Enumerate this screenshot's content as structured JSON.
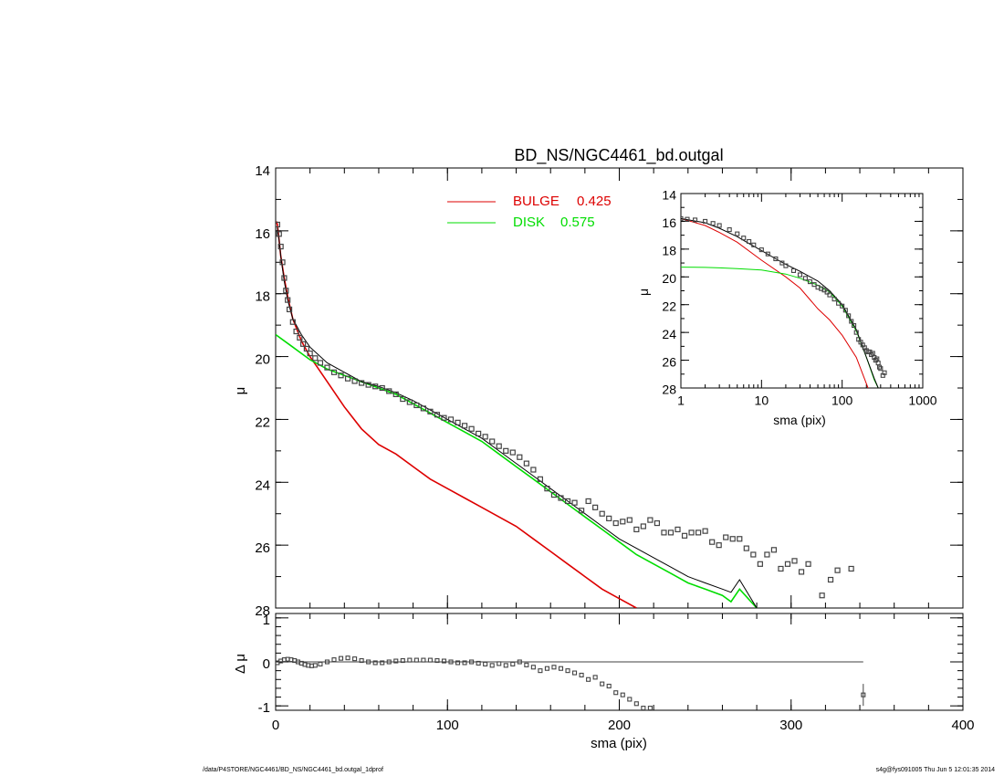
{
  "colors": {
    "axes": "#000000",
    "bulge": "#dd0000",
    "disk": "#00dd00",
    "total": "#000000",
    "points": "#444444"
  },
  "footer": {
    "left": "/data/P4STORE/NGC4461/BD_NS/NGC4461_bd.outgal_1dprof",
    "right": "s4g@fys091005  Thu Jun  5 12:01:35 2014"
  },
  "chart_data": [
    {
      "id": "main",
      "type": "scatter",
      "title": "BD_NS/NGC4461_bd.outgal",
      "xlabel": "",
      "ylabel": "μ",
      "xlim": [
        0,
        400
      ],
      "ylim": [
        28,
        14
      ],
      "yticks": [
        "14",
        "16",
        "18",
        "20",
        "22",
        "24",
        "26",
        "28"
      ],
      "legend": [
        {
          "name": "BULGE",
          "value": "0.425",
          "color": "#dd0000"
        },
        {
          "name": "DISK",
          "value": "0.575",
          "color": "#00dd00"
        }
      ],
      "legend_position": "top-center",
      "series": [
        {
          "name": "BULGE",
          "style": "line",
          "color": "#dd0000",
          "x": [
            0.5,
            1,
            2,
            3,
            5,
            7,
            10,
            15,
            20,
            25,
            30,
            40,
            50,
            60,
            70,
            80,
            90,
            100,
            110,
            120,
            130,
            140,
            150,
            160,
            170,
            180,
            190,
            200,
            210
          ],
          "y": [
            15.7,
            15.8,
            16.3,
            16.8,
            17.5,
            18.1,
            18.8,
            19.5,
            20.0,
            20.4,
            20.8,
            21.6,
            22.3,
            22.8,
            23.1,
            23.5,
            23.9,
            24.2,
            24.5,
            24.8,
            25.1,
            25.4,
            25.8,
            26.2,
            26.6,
            27.0,
            27.4,
            27.7,
            28.0
          ]
        },
        {
          "name": "DISK",
          "style": "line",
          "color": "#00dd00",
          "x": [
            0,
            10,
            20,
            30,
            40,
            50,
            60,
            70,
            80,
            90,
            100,
            110,
            120,
            130,
            140,
            150,
            160,
            170,
            180,
            190,
            200,
            210,
            220,
            230,
            240,
            250,
            260,
            265,
            270,
            280
          ],
          "y": [
            19.3,
            19.7,
            20.1,
            20.4,
            20.6,
            20.8,
            21.0,
            21.2,
            21.5,
            21.8,
            22.1,
            22.4,
            22.7,
            23.1,
            23.5,
            23.9,
            24.3,
            24.7,
            25.1,
            25.5,
            25.9,
            26.3,
            26.6,
            26.9,
            27.2,
            27.4,
            27.6,
            27.8,
            27.4,
            28.0
          ]
        },
        {
          "name": "Total",
          "style": "line",
          "color": "#000000",
          "x": [
            1,
            2,
            3,
            5,
            7,
            10,
            15,
            20,
            30,
            40,
            50,
            60,
            70,
            80,
            90,
            100,
            110,
            120,
            130,
            140,
            150,
            160,
            170,
            180,
            190,
            200,
            210,
            220,
            230,
            240,
            250,
            260,
            265,
            270,
            280
          ],
          "y": [
            15.9,
            16.3,
            16.8,
            17.6,
            18.2,
            18.8,
            19.3,
            19.7,
            20.2,
            20.5,
            20.8,
            20.95,
            21.15,
            21.4,
            21.7,
            22.0,
            22.3,
            22.6,
            23.0,
            23.4,
            23.8,
            24.2,
            24.6,
            25.0,
            25.4,
            25.8,
            26.1,
            26.4,
            26.7,
            27.0,
            27.2,
            27.4,
            27.5,
            27.1,
            28.0
          ]
        },
        {
          "name": "Data",
          "style": "points",
          "color": "#444444",
          "x": [
            1,
            2,
            3,
            4,
            5,
            6,
            7,
            8,
            10,
            12,
            14,
            16,
            18,
            20,
            23,
            26,
            30,
            34,
            38,
            42,
            46,
            50,
            54,
            58,
            62,
            66,
            70,
            74,
            78,
            82,
            86,
            90,
            94,
            98,
            102,
            106,
            110,
            114,
            118,
            122,
            126,
            130,
            134,
            138,
            142,
            146,
            150,
            154,
            158,
            162,
            166,
            170,
            174,
            178,
            182,
            186,
            190,
            194,
            198,
            202,
            206,
            210,
            214,
            218,
            222,
            226,
            230,
            234,
            238,
            242,
            246,
            250,
            254,
            258,
            262,
            266,
            270,
            274,
            278,
            282,
            286,
            290,
            294,
            298,
            302,
            306,
            310,
            318,
            323,
            327,
            335
          ],
          "y": [
            15.8,
            16.1,
            16.5,
            17.0,
            17.5,
            17.9,
            18.2,
            18.5,
            18.9,
            19.2,
            19.4,
            19.6,
            19.75,
            19.9,
            20.05,
            20.2,
            20.35,
            20.5,
            20.6,
            20.7,
            20.78,
            20.84,
            20.9,
            20.95,
            21.0,
            21.1,
            21.2,
            21.35,
            21.45,
            21.55,
            21.65,
            21.75,
            21.85,
            21.95,
            22.0,
            22.1,
            22.2,
            22.3,
            22.45,
            22.55,
            22.7,
            22.85,
            23.0,
            23.05,
            23.2,
            23.4,
            23.6,
            23.9,
            24.2,
            24.4,
            24.5,
            24.6,
            24.65,
            24.9,
            24.6,
            24.8,
            25.0,
            25.15,
            25.3,
            25.25,
            25.2,
            25.5,
            25.4,
            25.2,
            25.3,
            25.6,
            25.6,
            25.5,
            25.7,
            25.6,
            25.6,
            25.55,
            25.9,
            26.0,
            25.75,
            25.8,
            25.8,
            26.1,
            26.3,
            26.6,
            26.3,
            26.15,
            26.75,
            26.6,
            26.5,
            26.85,
            26.6,
            27.6,
            27.1,
            26.8,
            26.75
          ]
        }
      ]
    },
    {
      "id": "inset",
      "type": "scatter",
      "title": "",
      "xlabel": "sma (pix)",
      "ylabel": "μ",
      "xscale": "log",
      "xlim": [
        1,
        1000
      ],
      "ylim": [
        28,
        14
      ],
      "xticks": [
        "1",
        "10",
        "100",
        "1000"
      ],
      "yticks": [
        "14",
        "16",
        "18",
        "20",
        "22",
        "24",
        "26",
        "28"
      ],
      "series": [
        {
          "name": "BULGE",
          "style": "line",
          "color": "#dd0000",
          "x": [
            1,
            2,
            3,
            5,
            10,
            20,
            30,
            50,
            70,
            100,
            150,
            200,
            210
          ],
          "y": [
            15.8,
            16.3,
            16.8,
            17.5,
            18.8,
            20.0,
            20.8,
            22.3,
            23.1,
            24.2,
            25.8,
            27.7,
            28.0
          ]
        },
        {
          "name": "DISK",
          "style": "line",
          "color": "#00dd00",
          "x": [
            1,
            2,
            3,
            5,
            10,
            20,
            30,
            50,
            70,
            100,
            150,
            200,
            250,
            280
          ],
          "y": [
            19.3,
            19.32,
            19.35,
            19.4,
            19.5,
            19.8,
            20.1,
            20.6,
            21.1,
            22.1,
            23.9,
            25.8,
            27.4,
            28.0
          ]
        },
        {
          "name": "Total",
          "style": "line",
          "color": "#000000",
          "x": [
            1,
            2,
            3,
            5,
            7,
            10,
            15,
            20,
            30,
            50,
            70,
            100,
            150,
            200,
            250,
            280
          ],
          "y": [
            15.8,
            16.1,
            16.5,
            17.1,
            17.6,
            18.1,
            18.7,
            19.1,
            19.6,
            20.3,
            21.0,
            22.0,
            23.8,
            25.8,
            27.3,
            28.0
          ]
        },
        {
          "name": "Data",
          "style": "points",
          "color": "#444444",
          "x": [
            1,
            1.2,
            1.5,
            2,
            2.5,
            3,
            4,
            5,
            6,
            7,
            8,
            10,
            12,
            15,
            18,
            20,
            25,
            30,
            35,
            40,
            45,
            50,
            55,
            60,
            65,
            70,
            80,
            90,
            100,
            110,
            120,
            130,
            140,
            150,
            160,
            170,
            180,
            190,
            200,
            210,
            220,
            230,
            240,
            250,
            260,
            270,
            280,
            290,
            300,
            320,
            335
          ],
          "y": [
            15.8,
            15.85,
            15.9,
            16.0,
            16.15,
            16.3,
            16.6,
            16.9,
            17.2,
            17.45,
            17.7,
            18.05,
            18.35,
            18.7,
            19.0,
            19.2,
            19.55,
            19.85,
            20.1,
            20.35,
            20.55,
            20.75,
            20.85,
            20.95,
            21.1,
            21.3,
            21.6,
            21.9,
            22.1,
            22.4,
            22.8,
            23.2,
            23.5,
            24.0,
            24.5,
            24.7,
            24.9,
            25.1,
            25.3,
            25.4,
            25.4,
            25.6,
            25.5,
            25.8,
            26.0,
            25.9,
            26.2,
            26.5,
            26.6,
            27.1,
            26.9
          ]
        }
      ]
    },
    {
      "id": "residual",
      "type": "scatter",
      "title": "",
      "xlabel": "sma (pix)",
      "ylabel": "Δ μ",
      "xlim": [
        0,
        400
      ],
      "ylim": [
        -1.1,
        1.1
      ],
      "xticks": [
        "0",
        "100",
        "200",
        "300",
        "400"
      ],
      "yticks": [
        "1",
        "0",
        "-1"
      ],
      "series": [
        {
          "name": "zero",
          "style": "line",
          "color": "#000000",
          "x": [
            0,
            342
          ],
          "y": [
            0,
            0
          ]
        },
        {
          "name": "Residual",
          "style": "points",
          "color": "#444444",
          "x": [
            1,
            3,
            5,
            7,
            9,
            11,
            13,
            15,
            17,
            19,
            21,
            23,
            26,
            30,
            34,
            38,
            42,
            46,
            50,
            54,
            58,
            62,
            66,
            70,
            74,
            78,
            82,
            86,
            90,
            94,
            98,
            102,
            106,
            110,
            114,
            118,
            122,
            126,
            130,
            134,
            138,
            142,
            146,
            150,
            154,
            158,
            162,
            166,
            170,
            174,
            178,
            182,
            186,
            190,
            194,
            198,
            202,
            206,
            210,
            214,
            218
          ],
          "y": [
            -0.02,
            0.02,
            0.05,
            0.06,
            0.05,
            0.03,
            0.0,
            -0.03,
            -0.06,
            -0.08,
            -0.09,
            -0.08,
            -0.05,
            0.0,
            0.05,
            0.08,
            0.09,
            0.07,
            0.03,
            0.0,
            -0.02,
            -0.02,
            0.0,
            0.02,
            0.03,
            0.04,
            0.04,
            0.04,
            0.04,
            0.03,
            0.02,
            0.0,
            -0.02,
            -0.02,
            0.0,
            -0.03,
            -0.05,
            -0.08,
            -0.04,
            -0.08,
            -0.05,
            0.0,
            -0.07,
            -0.12,
            -0.2,
            -0.15,
            -0.12,
            -0.15,
            -0.2,
            -0.25,
            -0.3,
            -0.4,
            -0.35,
            -0.5,
            -0.55,
            -0.7,
            -0.75,
            -0.85,
            -0.95,
            -1.05,
            -1.05
          ]
        },
        {
          "name": "Residual error",
          "style": "errorbar",
          "color": "#444444",
          "x": [
            342
          ],
          "y": [
            -0.75
          ],
          "err": [
            0.25
          ]
        }
      ]
    }
  ]
}
